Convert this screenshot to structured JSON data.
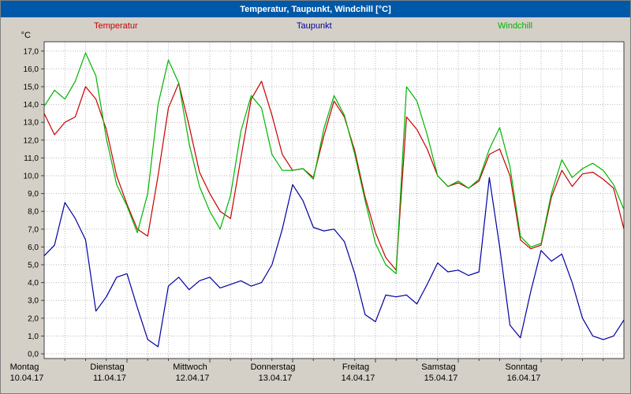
{
  "window": {
    "title": "Temperatur, Taupunkt, Windchill [°C]"
  },
  "legend": {
    "items": [
      {
        "label": "Temperatur",
        "color": "#c80000"
      },
      {
        "label": "Taupunkt",
        "color": "#0000a0"
      },
      {
        "label": "Windchill",
        "color": "#00b400"
      }
    ]
  },
  "chart_data": {
    "type": "line",
    "title": "Temperatur, Taupunkt, Windchill [°C]",
    "unit_label": "°C",
    "x_start": "Montag 10.04.17 00:00",
    "x_step_hours": 3,
    "x_total_hours": 168,
    "x_day_labels": [
      {
        "day": "Montag",
        "date": "10.04.17"
      },
      {
        "day": "Dienstag",
        "date": "11.04.17"
      },
      {
        "day": "Mittwoch",
        "date": "12.04.17"
      },
      {
        "day": "Donnerstag",
        "date": "13.04.17"
      },
      {
        "day": "Freitag",
        "date": "14.04.17"
      },
      {
        "day": "Samstag",
        "date": "15.04.17"
      },
      {
        "day": "Sonntag",
        "date": "16.04.17"
      }
    ],
    "ylim": [
      0,
      17
    ],
    "y_tick_step": 1,
    "y_tick_labels": [
      "0,0",
      "1,0",
      "2,0",
      "3,0",
      "4,0",
      "5,0",
      "6,0",
      "7,0",
      "8,0",
      "9,0",
      "10,0",
      "11,0",
      "12,0",
      "13,0",
      "14,0",
      "15,0",
      "16,0",
      "17,0"
    ],
    "grid": {
      "horizontal_every": 1,
      "vertical_every_hours": 6,
      "style": "dashed"
    },
    "series": [
      {
        "name": "Temperatur",
        "color": "#c80000",
        "values": [
          13.5,
          12.3,
          13.0,
          13.3,
          15.0,
          14.3,
          12.6,
          10.0,
          8.4,
          7.0,
          6.6,
          10.0,
          13.8,
          15.2,
          12.8,
          10.2,
          9.0,
          8.0,
          7.6,
          11.0,
          14.3,
          15.3,
          13.4,
          11.2,
          10.3,
          10.4,
          9.9,
          12.2,
          14.2,
          13.3,
          11.4,
          8.8,
          6.8,
          5.4,
          4.7,
          13.3,
          12.6,
          11.5,
          10.0,
          9.4,
          9.6,
          9.3,
          9.7,
          11.2,
          11.5,
          10.0,
          6.4,
          5.9,
          6.1,
          8.8,
          10.3,
          9.4,
          10.1,
          10.2,
          9.8,
          9.3,
          7.0
        ]
      },
      {
        "name": "Taupunkt",
        "color": "#0000a0",
        "values": [
          5.5,
          6.1,
          8.5,
          7.6,
          6.4,
          2.4,
          3.2,
          4.3,
          4.5,
          2.6,
          0.8,
          0.4,
          3.8,
          4.3,
          3.6,
          4.1,
          4.3,
          3.7,
          3.9,
          4.1,
          3.8,
          4.0,
          5.0,
          7.0,
          9.5,
          8.6,
          7.1,
          6.9,
          7.0,
          6.3,
          4.5,
          2.2,
          1.8,
          3.3,
          3.2,
          3.3,
          2.8,
          3.9,
          5.1,
          4.6,
          4.7,
          4.4,
          4.6,
          9.9,
          6.0,
          1.6,
          0.9,
          3.5,
          5.8,
          5.2,
          5.6,
          4.0,
          2.0,
          1.0,
          0.8,
          1.0,
          1.9
        ]
      },
      {
        "name": "Windchill",
        "color": "#00b400",
        "values": [
          13.9,
          14.8,
          14.3,
          15.3,
          16.9,
          15.6,
          12.1,
          9.5,
          8.3,
          6.8,
          9.0,
          14.0,
          16.5,
          15.2,
          11.8,
          9.4,
          8.0,
          7.0,
          8.9,
          12.5,
          14.5,
          13.8,
          11.2,
          10.3,
          10.3,
          10.4,
          9.8,
          12.6,
          14.5,
          13.4,
          11.2,
          8.6,
          6.2,
          5.0,
          4.5,
          15.0,
          14.2,
          12.3,
          10.0,
          9.4,
          9.7,
          9.3,
          9.8,
          11.5,
          12.7,
          10.5,
          6.6,
          6.0,
          6.2,
          9.0,
          10.9,
          9.9,
          10.4,
          10.7,
          10.3,
          9.5,
          8.1
        ]
      }
    ]
  }
}
